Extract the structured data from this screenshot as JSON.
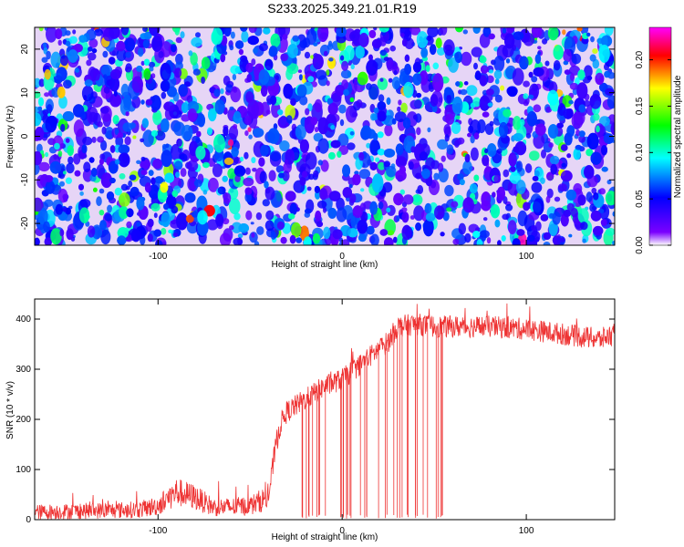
{
  "title": "S233.2025.349.21.01.R19",
  "spectrogram": {
    "type": "heatmap",
    "xlabel": "Height of straight line (km)",
    "ylabel": "Frequency (Hz)",
    "xlim": [
      -167,
      148
    ],
    "ylim": [
      -25,
      25
    ],
    "xticks": [
      -100,
      0,
      100
    ],
    "yticks": [
      -20,
      -10,
      0,
      10,
      20
    ],
    "colorbar": {
      "label": "Normalized spectral amplitude",
      "range": [
        0.0,
        0.235
      ],
      "ticks": [
        "0.00",
        "0.05",
        "0.10",
        "0.15",
        "0.20"
      ],
      "tick_values": [
        0.0,
        0.05,
        0.1,
        0.15,
        0.2
      ],
      "colors": [
        "#ffffff",
        "#7a00ff",
        "#0000ff",
        "#00ffff",
        "#00ff00",
        "#ffff00",
        "#ff0000",
        "#ff00ff"
      ]
    },
    "description_values": {
      "background_level": 0.04,
      "peak_level": 0.22
    }
  },
  "snr_plot": {
    "type": "line",
    "xlabel": "Height of straight line (km)",
    "ylabel": "SNR (10 * v/v)",
    "xlim": [
      -167,
      148
    ],
    "ylim": [
      0,
      440
    ],
    "xticks": [
      -100,
      0,
      100
    ],
    "yticks": [
      0,
      100,
      200,
      300,
      400
    ],
    "color": "#ee3333",
    "x": [
      -167,
      -110,
      -100,
      -90,
      -80,
      -70,
      -60,
      -50,
      -40,
      -36,
      -33,
      -30,
      -20,
      -10,
      0,
      10,
      20,
      25,
      30,
      40,
      50,
      60,
      80,
      100,
      120,
      140,
      148
    ],
    "y": [
      15,
      20,
      28,
      55,
      45,
      25,
      25,
      28,
      45,
      150,
      195,
      215,
      240,
      265,
      280,
      310,
      340,
      355,
      385,
      390,
      385,
      385,
      385,
      380,
      370,
      360,
      370
    ]
  }
}
